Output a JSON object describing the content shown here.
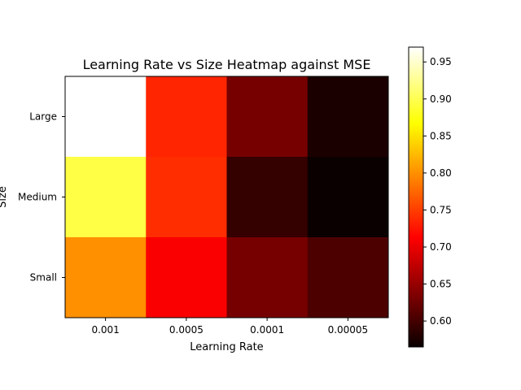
{
  "chart_data": {
    "type": "heatmap",
    "title": "Learning Rate vs Size Heatmap against MSE",
    "xlabel": "Learning Rate",
    "ylabel": "Size",
    "x_categories": [
      "0.001",
      "0.0005",
      "0.0001",
      "0.00005"
    ],
    "y_categories": [
      "Large",
      "Medium",
      "Small"
    ],
    "values": [
      [
        0.97,
        0.735,
        0.63,
        0.575
      ],
      [
        0.895,
        0.74,
        0.59,
        0.565
      ],
      [
        0.8,
        0.71,
        0.63,
        0.605
      ]
    ],
    "colormap": "hot",
    "colorbar": {
      "range": [
        0.565,
        0.97
      ],
      "ticks": [
        0.6,
        0.65,
        0.7,
        0.75,
        0.8,
        0.85,
        0.9,
        0.95
      ],
      "tick_labels": [
        "0.60",
        "0.65",
        "0.70",
        "0.75",
        "0.80",
        "0.85",
        "0.90",
        "0.95"
      ]
    }
  }
}
